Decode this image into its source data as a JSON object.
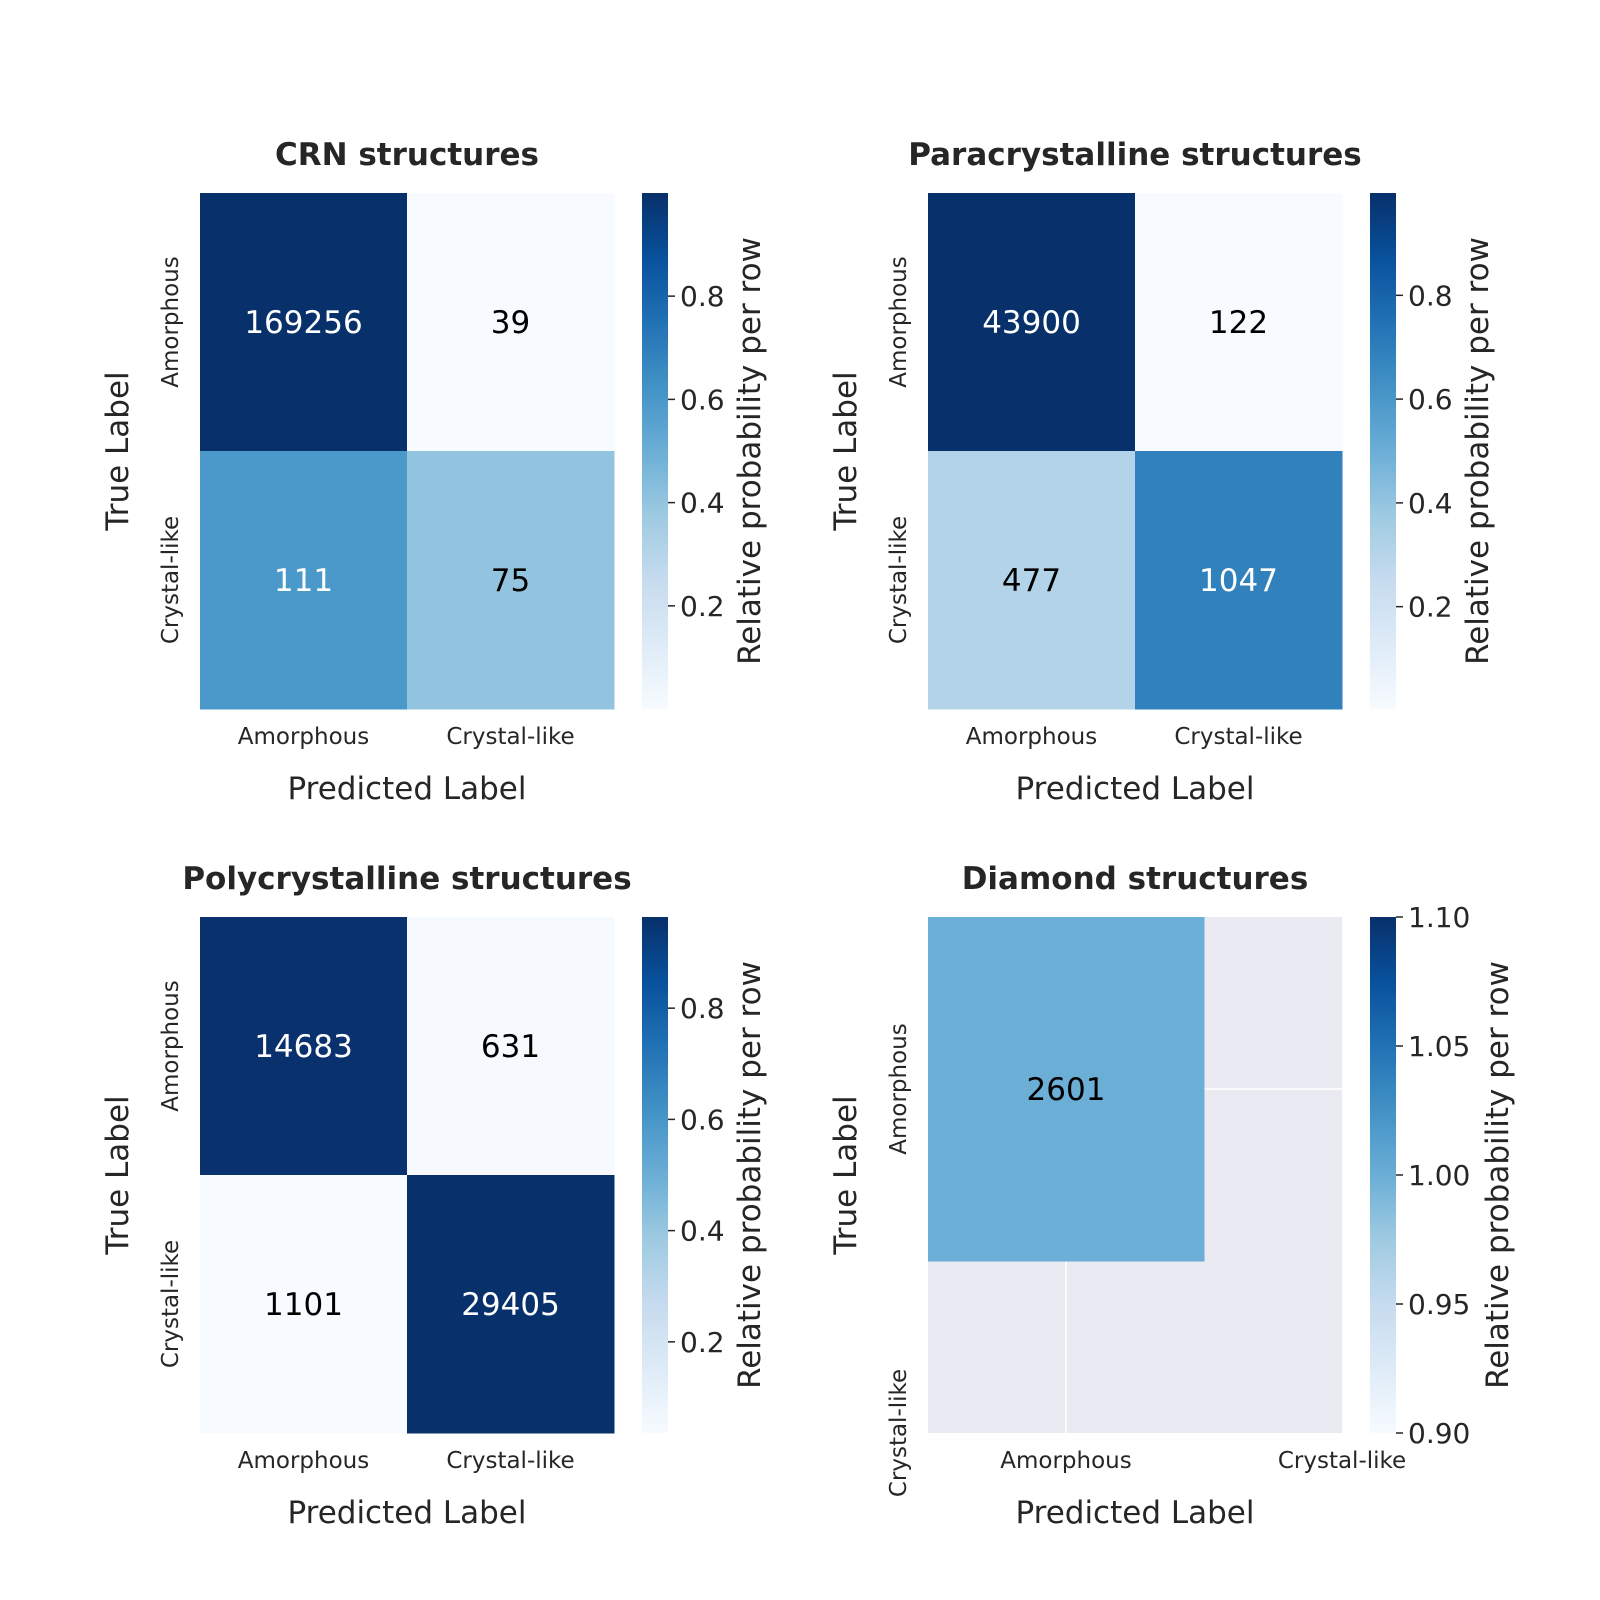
{
  "chart_data": [
    {
      "type": "heatmap",
      "title": "CRN structures",
      "xlabel": "Predicted Label",
      "ylabel": "True Label",
      "x_categories": [
        "Amorphous",
        "Crystal-like"
      ],
      "y_categories": [
        "Amorphous",
        "Crystal-like"
      ],
      "counts": [
        [
          169256,
          39
        ],
        [
          111,
          75
        ]
      ],
      "relative": [
        [
          0.9998,
          0.0002
        ],
        [
          0.597,
          0.403
        ]
      ],
      "colorbar": {
        "label": "Relative probability per row",
        "ticks": [
          "0.2",
          "0.4",
          "0.6",
          "0.8"
        ],
        "tick_values": [
          0.2,
          0.4,
          0.6,
          0.8
        ],
        "range": [
          0.0002,
          0.9998
        ]
      }
    },
    {
      "type": "heatmap",
      "title": "Paracrystalline structures",
      "xlabel": "Predicted Label",
      "ylabel": "True Label",
      "x_categories": [
        "Amorphous",
        "Crystal-like"
      ],
      "y_categories": [
        "Amorphous",
        "Crystal-like"
      ],
      "counts": [
        [
          43900,
          122
        ],
        [
          477,
          1047
        ]
      ],
      "relative": [
        [
          0.9972,
          0.0028
        ],
        [
          0.313,
          0.687
        ]
      ],
      "colorbar": {
        "label": "Relative probability per row",
        "ticks": [
          "0.2",
          "0.4",
          "0.6",
          "0.8"
        ],
        "tick_values": [
          0.2,
          0.4,
          0.6,
          0.8
        ],
        "range": [
          0.0028,
          0.9972
        ]
      }
    },
    {
      "type": "heatmap",
      "title": "Polycrystalline structures",
      "xlabel": "Predicted Label",
      "ylabel": "True Label",
      "x_categories": [
        "Amorphous",
        "Crystal-like"
      ],
      "y_categories": [
        "Amorphous",
        "Crystal-like"
      ],
      "counts": [
        [
          14683,
          631
        ],
        [
          1101,
          29405
        ]
      ],
      "relative": [
        [
          0.9588,
          0.0412
        ],
        [
          0.0361,
          0.9639
        ]
      ],
      "colorbar": {
        "label": "Relative probability per row",
        "ticks": [
          "0.2",
          "0.4",
          "0.6",
          "0.8"
        ],
        "tick_values": [
          0.2,
          0.4,
          0.6,
          0.8
        ],
        "range": [
          0.0361,
          0.9639
        ]
      }
    },
    {
      "type": "heatmap",
      "title": "Diamond structures",
      "xlabel": "Predicted Label",
      "ylabel": "True Label",
      "x_categories": [
        "Amorphous",
        "Crystal-like"
      ],
      "y_categories": [
        "Amorphous",
        "Crystal-like"
      ],
      "counts": [
        [
          2601
        ]
      ],
      "relative": [
        [
          1.0
        ]
      ],
      "colorbar": {
        "label": "Relative probability per row",
        "ticks": [
          "0.90",
          "0.95",
          "1.00",
          "1.05",
          "1.10"
        ],
        "tick_values": [
          0.9,
          0.95,
          1.0,
          1.05,
          1.1
        ],
        "range": [
          0.9,
          1.1
        ]
      },
      "background": "#eaeaf2"
    }
  ]
}
